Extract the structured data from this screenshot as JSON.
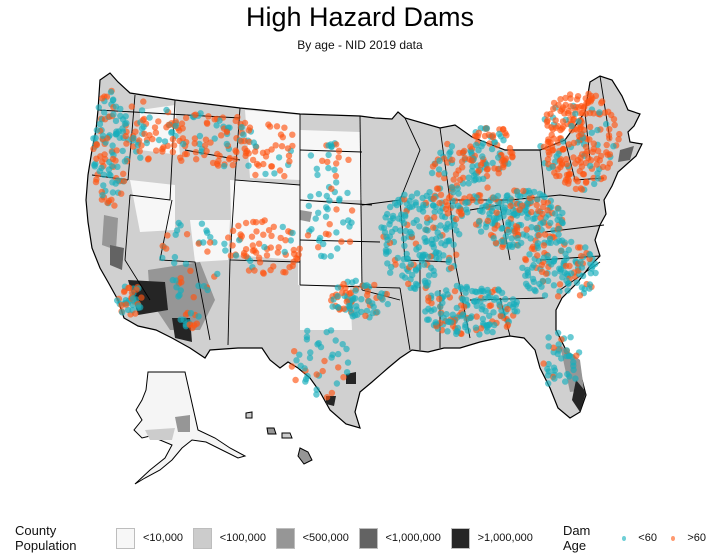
{
  "header": {
    "title": "High Hazard Dams",
    "subtitle": "By age - NID 2019 data"
  },
  "legend": {
    "population_title": "County Population",
    "population_classes": [
      {
        "label": "<10,000",
        "color": "#f7f7f7"
      },
      {
        "label": "<100,000",
        "color": "#cccccc"
      },
      {
        "label": "<500,000",
        "color": "#969696"
      },
      {
        "label": "<1,000,000",
        "color": "#636363"
      },
      {
        "label": ">1,000,000",
        "color": "#252525"
      }
    ],
    "age_title": "Dam Age",
    "age_classes": [
      {
        "label": "<60",
        "color": "#1fb2bd"
      },
      {
        "label": ">60",
        "color": "#ff5a1a"
      }
    ]
  },
  "colors": {
    "young_dam": "#17aebb",
    "old_dam": "#ff5512",
    "state_border": "#000000",
    "county_border": "#ffffff"
  },
  "map": {
    "regions": [
      "Contiguous United States",
      "Alaska",
      "Hawaii"
    ]
  }
}
